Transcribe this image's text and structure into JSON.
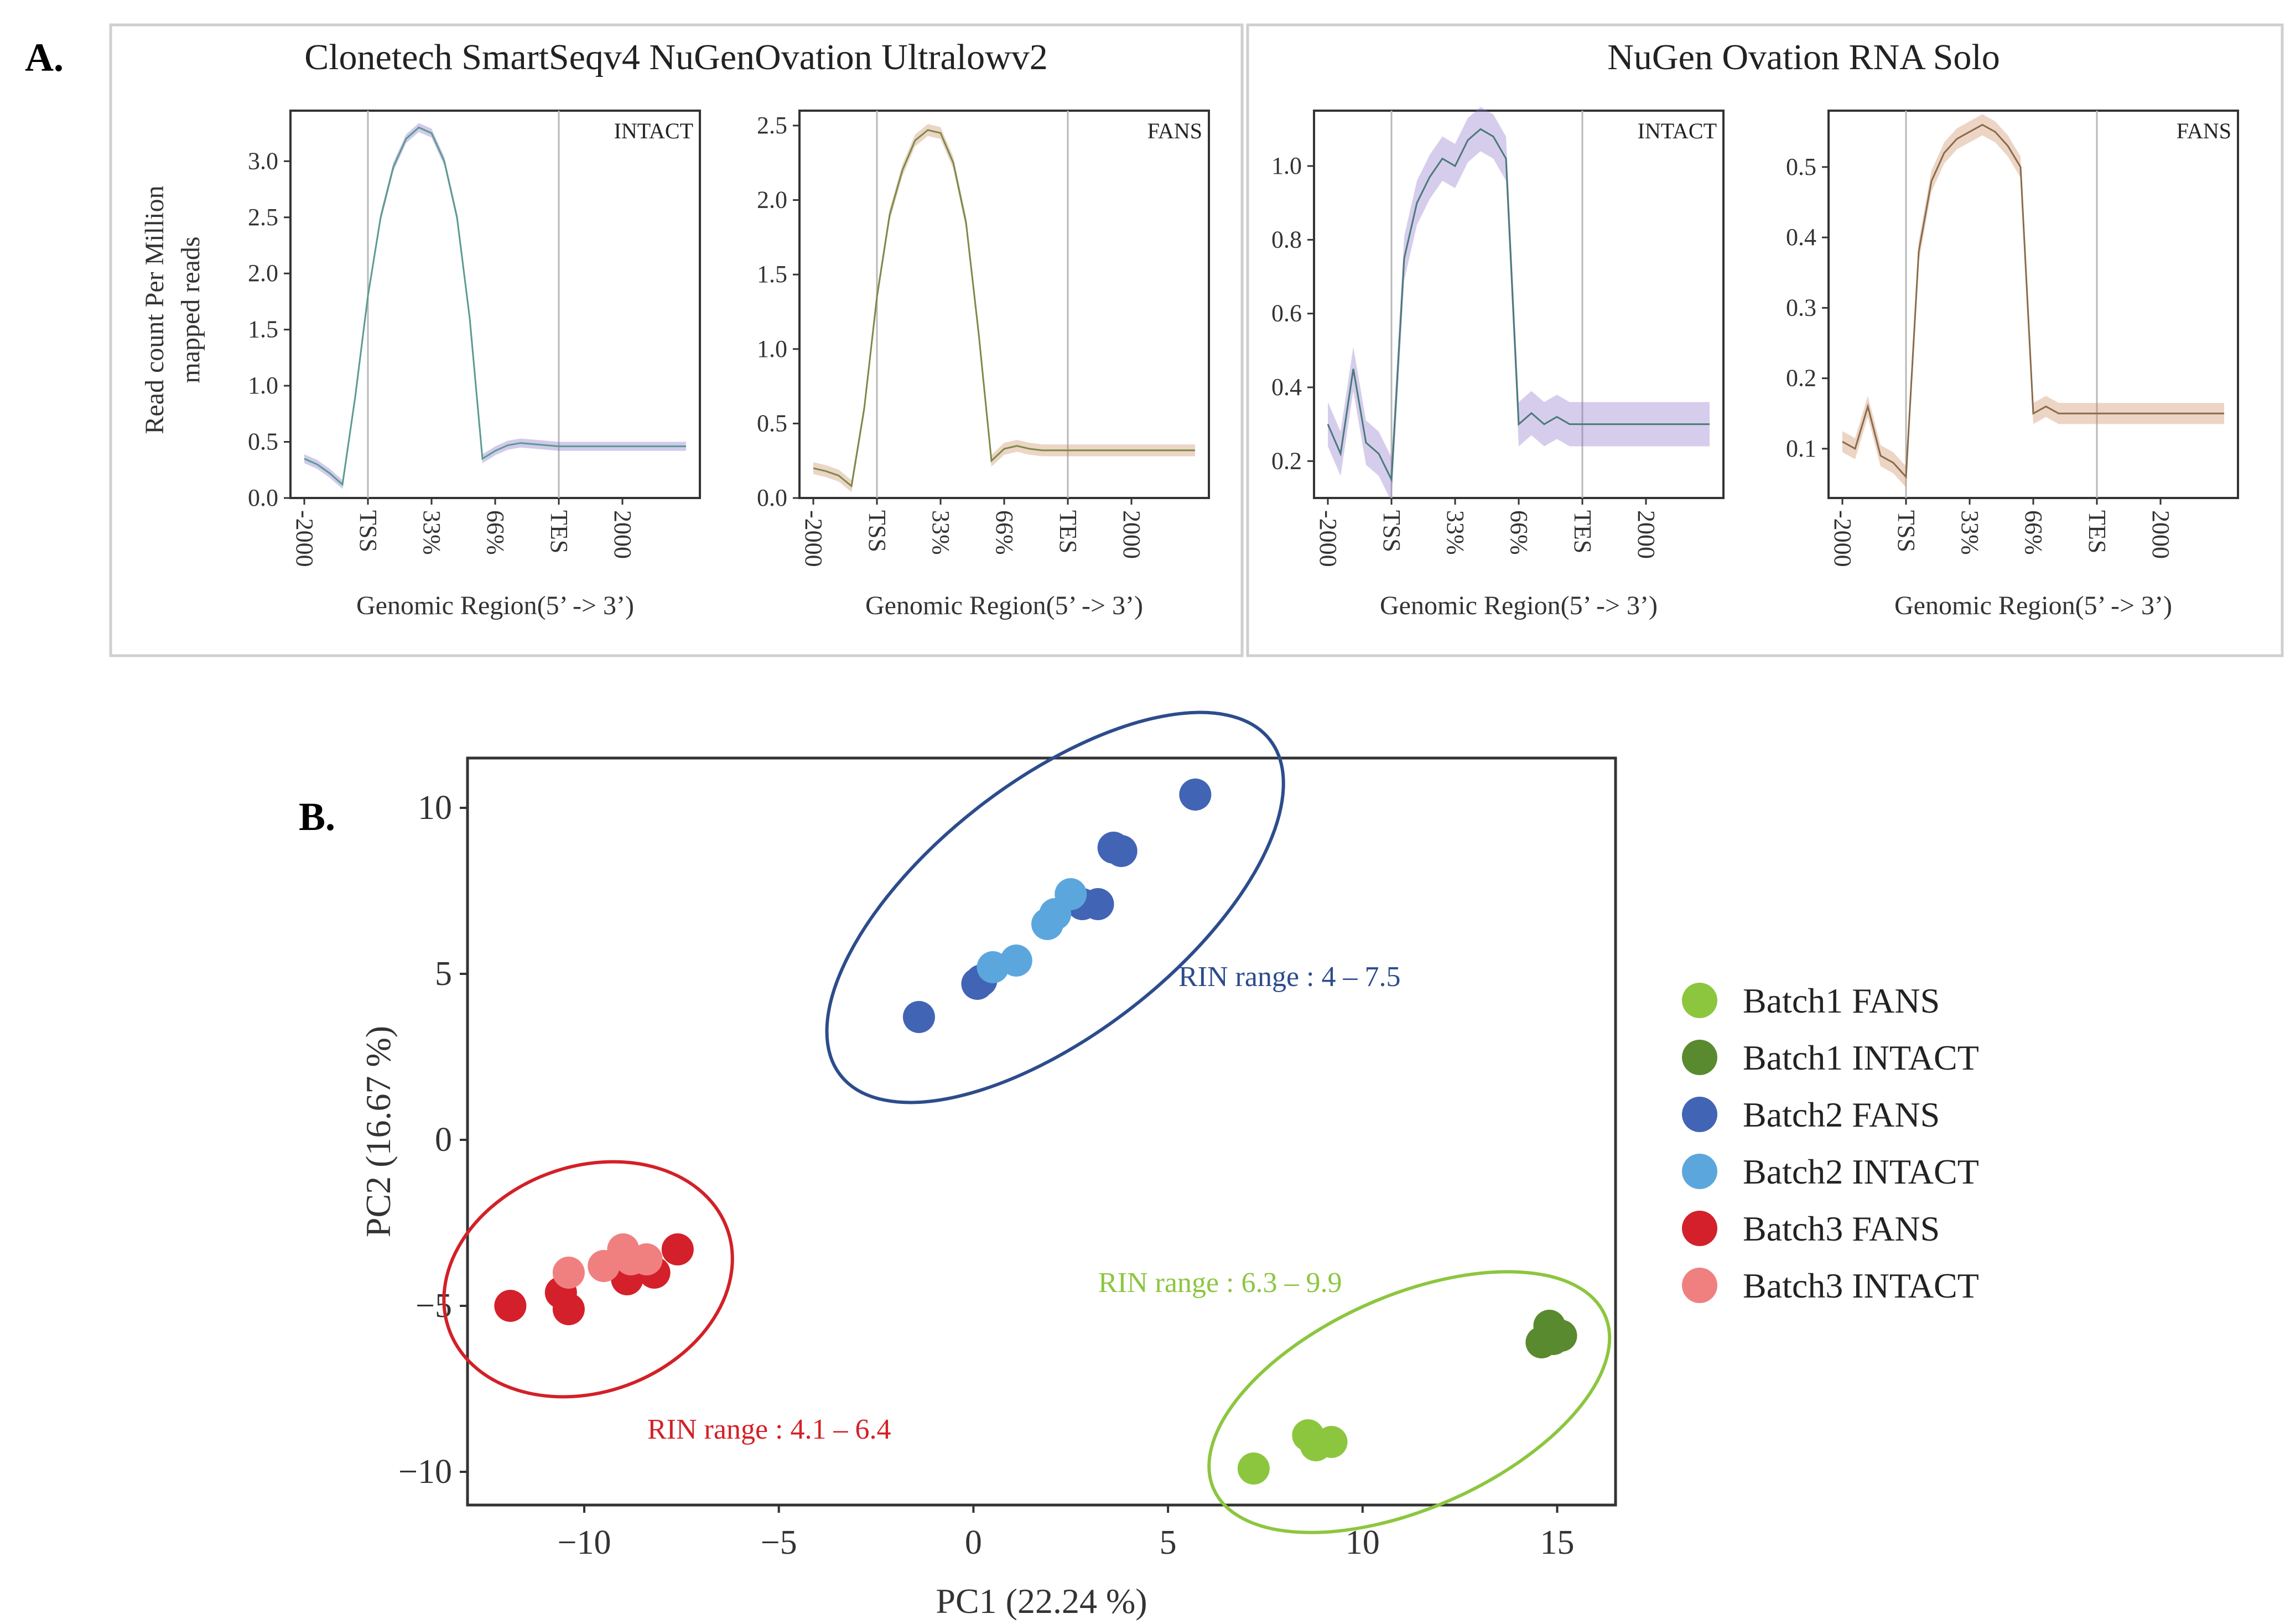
{
  "panel_a": {
    "label": "A.",
    "group_titles": [
      "Clonetech SmartSeqv4 NuGenOvation Ultralowv2",
      "NuGen Ovation RNA Solo"
    ],
    "ylabel_line1": "Read count Per Million",
    "ylabel_line2": "mapped reads",
    "xlabel": "Genomic Region(5’ -> 3’)",
    "x_ticks": [
      "-2000",
      "TSS",
      "33%",
      "66%",
      "TES",
      "2000"
    ]
  },
  "panel_b": {
    "label": "B.",
    "rin_labels": [
      {
        "text": "RIN range : 4 – 7.5",
        "color": "#2c4c8c"
      },
      {
        "text": "RIN range : 6.3 – 9.9",
        "color": "#8cc63f"
      },
      {
        "text": "RIN range : 4.1 – 6.4",
        "color": "#d32027"
      }
    ],
    "legend": [
      {
        "label": "Batch1 FANS",
        "color": "#8cc63f"
      },
      {
        "label": "Batch1 INTACT",
        "color": "#5a8a30"
      },
      {
        "label": "Batch2 FANS",
        "color": "#4264b4"
      },
      {
        "label": "Batch2 INTACT",
        "color": "#5ba7dd"
      },
      {
        "label": "Batch3 FANS",
        "color": "#d4202a"
      },
      {
        "label": "Batch3 INTACT",
        "color": "#f08080"
      }
    ]
  },
  "chart_data": [
    {
      "type": "area",
      "tag": "INTACT",
      "color": "#7b68c8",
      "line_color": "#5b9a8f",
      "x": [
        0,
        10,
        20,
        30,
        40,
        50,
        60,
        70,
        80,
        90,
        100,
        110,
        120,
        130,
        140,
        150,
        160,
        170,
        180,
        190,
        200,
        210,
        220,
        230,
        240,
        250,
        260,
        270,
        280,
        290,
        300
      ],
      "y": [
        0.35,
        0.3,
        0.22,
        0.12,
        0.9,
        1.8,
        2.5,
        2.95,
        3.2,
        3.3,
        3.25,
        3.0,
        2.5,
        1.6,
        0.35,
        0.42,
        0.47,
        0.49,
        0.48,
        0.47,
        0.46,
        0.46,
        0.46,
        0.46,
        0.46,
        0.46,
        0.46,
        0.46,
        0.46,
        0.46,
        0.46
      ],
      "ylim": [
        0,
        3.45
      ],
      "yticks": [
        0.0,
        0.5,
        1.0,
        1.5,
        2.0,
        2.5,
        3.0
      ],
      "band": 0.04
    },
    {
      "type": "area",
      "tag": "FANS",
      "color": "#c8875a",
      "line_color": "#7a8a4a",
      "x": [
        0,
        10,
        20,
        30,
        40,
        50,
        60,
        70,
        80,
        90,
        100,
        110,
        120,
        130,
        140,
        150,
        160,
        170,
        180,
        190,
        200,
        210,
        220,
        230,
        240,
        250,
        260,
        270,
        280,
        290,
        300
      ],
      "y": [
        0.2,
        0.18,
        0.15,
        0.08,
        0.6,
        1.35,
        1.9,
        2.2,
        2.4,
        2.47,
        2.45,
        2.25,
        1.85,
        1.1,
        0.25,
        0.33,
        0.35,
        0.33,
        0.32,
        0.32,
        0.32,
        0.32,
        0.32,
        0.32,
        0.32,
        0.32,
        0.32,
        0.32,
        0.32,
        0.32,
        0.32
      ],
      "ylim": [
        0,
        2.6
      ],
      "yticks": [
        0.0,
        0.5,
        1.0,
        1.5,
        2.0,
        2.5
      ],
      "band": 0.04
    },
    {
      "type": "area",
      "tag": "INTACT",
      "color": "#8a70c8",
      "line_color": "#4a7a7a",
      "x": [
        0,
        10,
        20,
        30,
        40,
        50,
        60,
        70,
        80,
        90,
        100,
        110,
        120,
        130,
        140,
        150,
        160,
        170,
        180,
        190,
        200,
        210,
        220,
        230,
        240,
        250,
        260,
        270,
        280,
        290,
        300
      ],
      "y": [
        0.3,
        0.22,
        0.45,
        0.25,
        0.22,
        0.15,
        0.75,
        0.9,
        0.97,
        1.02,
        1.0,
        1.07,
        1.1,
        1.08,
        1.02,
        0.3,
        0.33,
        0.3,
        0.32,
        0.3,
        0.3,
        0.3,
        0.3,
        0.3,
        0.3,
        0.3,
        0.3,
        0.3,
        0.3,
        0.3,
        0.3
      ],
      "ylim": [
        0.1,
        1.15
      ],
      "yticks": [
        0.2,
        0.4,
        0.6,
        0.8,
        1.0
      ],
      "band": 0.06
    },
    {
      "type": "area",
      "tag": "FANS",
      "color": "#c8875a",
      "line_color": "#8a6a4a",
      "x": [
        0,
        10,
        20,
        30,
        40,
        50,
        60,
        70,
        80,
        90,
        100,
        110,
        120,
        130,
        140,
        150,
        160,
        170,
        180,
        190,
        200,
        210,
        220,
        230,
        240,
        250,
        260,
        270,
        280,
        290,
        300
      ],
      "y": [
        0.11,
        0.1,
        0.16,
        0.09,
        0.08,
        0.06,
        0.38,
        0.48,
        0.52,
        0.54,
        0.55,
        0.56,
        0.55,
        0.53,
        0.5,
        0.15,
        0.16,
        0.15,
        0.15,
        0.15,
        0.15,
        0.15,
        0.15,
        0.15,
        0.15,
        0.15,
        0.15,
        0.15,
        0.15,
        0.15,
        0.15
      ],
      "ylim": [
        0.03,
        0.58
      ],
      "yticks": [
        0.1,
        0.2,
        0.3,
        0.4,
        0.5
      ],
      "band": 0.015
    },
    {
      "type": "scatter",
      "xlabel": "PC1 (22.24 %)",
      "ylabel": "PC2 (16.67 %)",
      "xlim": [
        -13,
        16.5
      ],
      "ylim": [
        -11,
        11.5
      ],
      "xticks": [
        -10,
        -5,
        0,
        5,
        10,
        15
      ],
      "yticks": [
        10,
        5,
        0,
        -5,
        -10
      ],
      "series": [
        {
          "name": "Batch1 FANS",
          "color": "#8cc63f",
          "points": [
            [
              7.2,
              -9.9
            ],
            [
              8.6,
              -8.9
            ],
            [
              8.8,
              -9.2
            ],
            [
              9.2,
              -9.1
            ]
          ]
        },
        {
          "name": "Batch1 INTACT",
          "color": "#5a8a30",
          "points": [
            [
              14.6,
              -6.1
            ],
            [
              14.8,
              -5.6
            ],
            [
              15.1,
              -5.9
            ],
            [
              14.9,
              -6.0
            ]
          ]
        },
        {
          "name": "Batch2 FANS",
          "color": "#4264b4",
          "points": [
            [
              -1.4,
              3.7
            ],
            [
              0.1,
              4.7
            ],
            [
              0.2,
              4.8
            ],
            [
              2.8,
              7.1
            ],
            [
              3.2,
              7.1
            ],
            [
              3.6,
              8.8
            ],
            [
              3.8,
              8.7
            ],
            [
              5.7,
              10.4
            ]
          ]
        },
        {
          "name": "Batch2 INTACT",
          "color": "#5ba7dd",
          "points": [
            [
              0.5,
              5.2
            ],
            [
              1.1,
              5.4
            ],
            [
              1.9,
              6.5
            ],
            [
              2.1,
              6.8
            ],
            [
              2.5,
              7.4
            ]
          ]
        },
        {
          "name": "Batch3 FANS",
          "color": "#d4202a",
          "points": [
            [
              -11.9,
              -5.0
            ],
            [
              -10.6,
              -4.6
            ],
            [
              -10.4,
              -5.1
            ],
            [
              -8.9,
              -4.2
            ],
            [
              -8.2,
              -4.0
            ],
            [
              -7.6,
              -3.3
            ]
          ]
        },
        {
          "name": "Batch3 INTACT",
          "color": "#f08080",
          "points": [
            [
              -10.4,
              -4.0
            ],
            [
              -9.5,
              -3.8
            ],
            [
              -9.0,
              -3.3
            ],
            [
              -8.8,
              -3.6
            ],
            [
              -8.4,
              -3.6
            ]
          ]
        }
      ]
    }
  ]
}
